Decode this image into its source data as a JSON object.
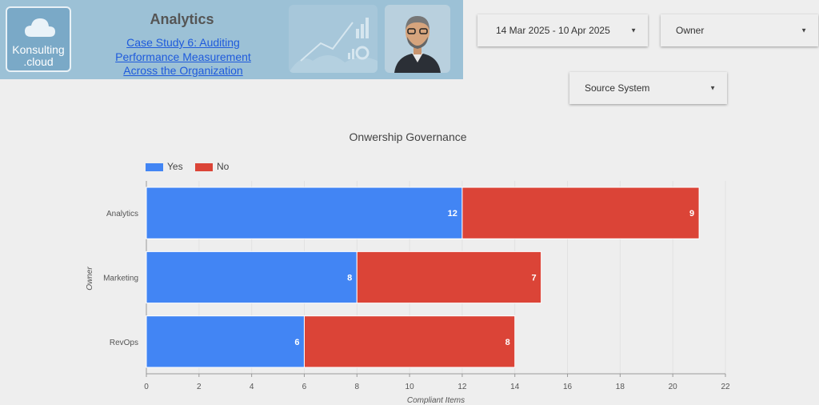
{
  "header": {
    "logo_line1": "Konsulting",
    "logo_line2": ".cloud",
    "title": "Analytics",
    "link": "Case Study 6: Auditing Performance Measurement Across the Organization"
  },
  "filters": {
    "date_range": "14 Mar 2025 - 10 Apr 2025",
    "owner": "Owner",
    "source_system": "Source System"
  },
  "colors": {
    "yes": "#4285f4",
    "no": "#db4437"
  },
  "chart_data": {
    "type": "bar",
    "orientation": "horizontal",
    "stacked": true,
    "title": "Onwership Governance",
    "categories": [
      "Analytics",
      "Marketing",
      "RevOps"
    ],
    "series": [
      {
        "name": "Yes",
        "values": [
          12,
          8,
          6
        ]
      },
      {
        "name": "No",
        "values": [
          9,
          7,
          8
        ]
      }
    ],
    "xlabel": "Compliant Items",
    "ylabel": "Owner",
    "xlim": [
      0,
      22
    ],
    "xticks": [
      0,
      2,
      4,
      6,
      8,
      10,
      12,
      14,
      16,
      18,
      20,
      22
    ],
    "legend": "top-left",
    "grid": true
  }
}
